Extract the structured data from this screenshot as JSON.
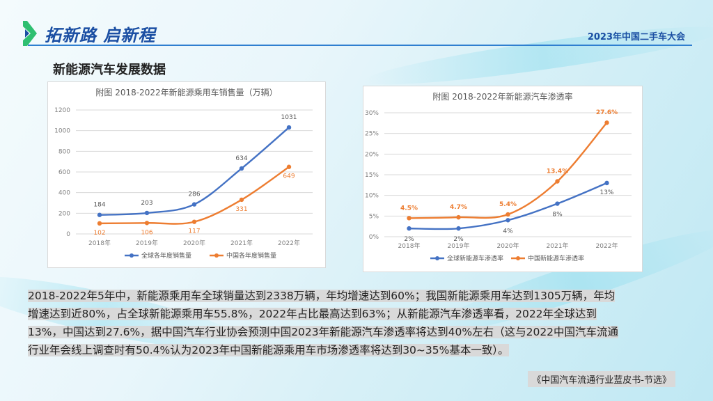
{
  "header": {
    "logo_text_1": "拓新路",
    "logo_text_2": "启新程",
    "conference": "2023年中国二手车大会"
  },
  "section_title": "新能源汽车发展数据",
  "chart_data": [
    {
      "type": "line",
      "title": "附图 2018-2022年新能源乘用车销售量（万辆）",
      "categories": [
        "2018年",
        "2019年",
        "2020年",
        "2021年",
        "2022年"
      ],
      "ylim": [
        0,
        1200
      ],
      "yticks": [
        "0",
        "200",
        "400",
        "600",
        "800",
        "1000",
        "1200"
      ],
      "grid": true,
      "legend": "bottom",
      "series": [
        {
          "name": "全球各年度销售量",
          "color": "#4472c4",
          "values": [
            184,
            203,
            286,
            634,
            1031
          ],
          "labels": [
            "184",
            "203",
            "286",
            "634",
            "1031"
          ]
        },
        {
          "name": "中国各年度销售量",
          "color": "#ed7d31",
          "values": [
            102,
            106,
            117,
            331,
            649
          ],
          "labels": [
            "102",
            "106",
            "117",
            "331",
            "649"
          ]
        }
      ]
    },
    {
      "type": "line",
      "title": "附图 2018-2022年新能源汽车渗透率",
      "categories": [
        "2018年",
        "2019年",
        "2020年",
        "2021年",
        "2022年"
      ],
      "ylim": [
        0,
        30
      ],
      "yticks": [
        "0%",
        "5%",
        "10%",
        "15%",
        "20%",
        "25%",
        "30%"
      ],
      "grid": true,
      "legend": "bottom",
      "series": [
        {
          "name": "全球新能源车渗透率",
          "color": "#4472c4",
          "values": [
            2,
            2,
            4,
            8,
            13
          ],
          "labels": [
            "2%",
            "2%",
            "4%",
            "8%",
            "13%"
          ]
        },
        {
          "name": "中国新能源车渗透率",
          "color": "#ed7d31",
          "values": [
            4.5,
            4.7,
            5.4,
            13.4,
            27.6
          ],
          "labels": [
            "4.5%",
            "4.7%",
            "5.4%",
            "13.4%",
            "27.6%"
          ]
        }
      ]
    }
  ],
  "paragraph_lines": [
    "2018-2022年5年中，新能源乘用车全球销量达到2338万辆，年均增速达到60%；我国新能源乘用车达到1305万辆，年均",
    "增速达到近80%，占全球新能源乘用车55.8%，2022年占比最高达到63%；从新能源汽车渗透率看，2022年全球达到",
    "13%，中国达到27.6%，据中国汽车行业协会预测中国2023年新能源汽车渗透率将达到40%左右（这与2022中国汽车流通",
    "行业年会线上调查时有50.4%认为2023年中国新能源乘用车市场渗透率将达到30~35%基本一致）。"
  ],
  "source": "《中国汽车流通行业蓝皮书-节选》"
}
